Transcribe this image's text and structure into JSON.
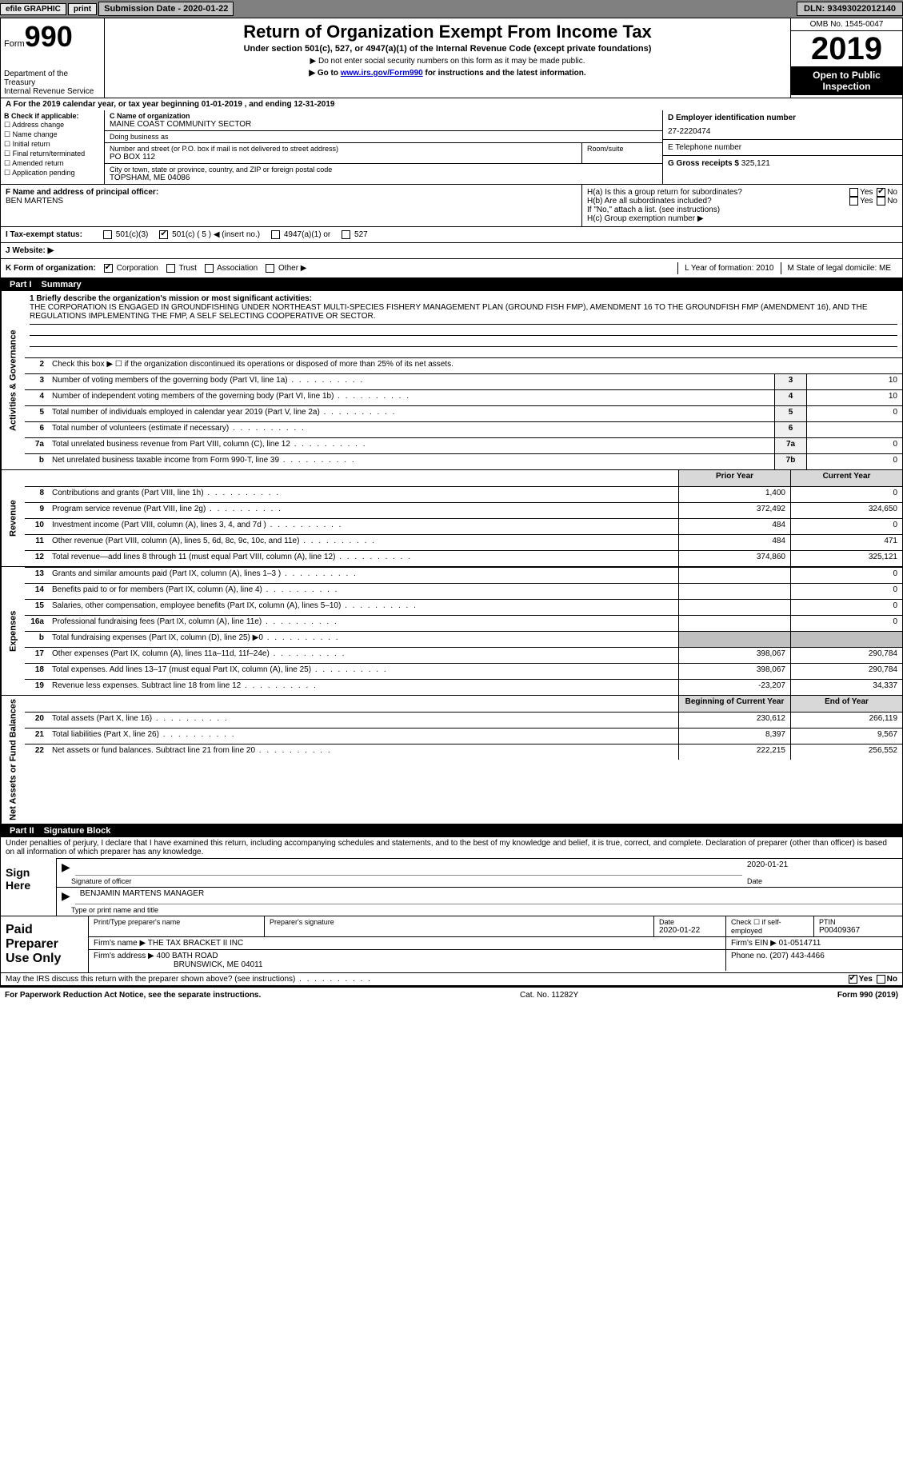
{
  "topbar": {
    "efile": "efile GRAPHIC",
    "print": "print",
    "submission": "Submission Date - 2020-01-22",
    "dln": "DLN: 93493022012140"
  },
  "header": {
    "form_label": "Form",
    "form_num": "990",
    "dept": "Department of the Treasury\nInternal Revenue Service",
    "title": "Return of Organization Exempt From Income Tax",
    "subtitle": "Under section 501(c), 527, or 4947(a)(1) of the Internal Revenue Code (except private foundations)",
    "note1": "▶ Do not enter social security numbers on this form as it may be made public.",
    "note2_pre": "▶ Go to ",
    "note2_link": "www.irs.gov/Form990",
    "note2_post": " for instructions and the latest information.",
    "omb": "OMB No. 1545-0047",
    "year": "2019",
    "open": "Open to Public Inspection"
  },
  "period": "For the 2019 calendar year, or tax year beginning 01-01-2019   , and ending 12-31-2019",
  "boxB": {
    "label": "B Check if applicable:",
    "items": [
      "☐ Address change",
      "☐ Name change",
      "☐ Initial return",
      "☐ Final return/terminated",
      "☐ Amended return",
      "☐ Application pending"
    ]
  },
  "boxC": {
    "name_label": "C Name of organization",
    "name": "MAINE COAST COMMUNITY SECTOR",
    "dba_label": "Doing business as",
    "dba": "",
    "addr_label": "Number and street (or P.O. box if mail is not delivered to street address)",
    "room_label": "Room/suite",
    "addr": "PO BOX 112",
    "city_label": "City or town, state or province, country, and ZIP or foreign postal code",
    "city": "TOPSHAM, ME  04086"
  },
  "boxD": {
    "label": "D Employer identification number",
    "val": "27-2220474"
  },
  "boxE": {
    "label": "E Telephone number",
    "val": ""
  },
  "boxG": {
    "label": "G Gross receipts $",
    "val": "325,121"
  },
  "boxF": {
    "label": "F  Name and address of principal officer:",
    "val": "BEN MARTENS"
  },
  "boxH": {
    "a_label": "H(a)  Is this a group return for subordinates?",
    "a_yes": "Yes",
    "a_no": "No",
    "b_label": "H(b)  Are all subordinates included?",
    "b_note": "If \"No,\" attach a list. (see instructions)",
    "c_label": "H(c)  Group exemption number ▶"
  },
  "taxstatus": {
    "label": "I   Tax-exempt status:",
    "opts": [
      "501(c)(3)",
      "501(c) ( 5 ) ◀ (insert no.)",
      "4947(a)(1) or",
      "527"
    ]
  },
  "website": {
    "label": "J   Website: ▶",
    "val": ""
  },
  "korg": {
    "label": "K Form of organization:",
    "opts": [
      "Corporation",
      "Trust",
      "Association",
      "Other ▶"
    ],
    "L": "L Year of formation: 2010",
    "M": "M State of legal domicile: ME"
  },
  "part1": {
    "num": "Part I",
    "title": "Summary"
  },
  "mission": {
    "label": "1    Briefly describe the organization's mission or most significant activities:",
    "text": "THE CORPORATION IS ENGAGED IN GROUNDFISHING UNDER NORTHEAST MULTI-SPECIES FISHERY MANAGEMENT PLAN (GROUND FISH FMP), AMENDMENT 16 TO THE GROUNDFISH FMP (AMENDMENT 16), AND THE REGULATIONS IMPLEMENTING THE FMP, A SELF SELECTING COOPERATIVE OR SECTOR."
  },
  "lines_gov": [
    {
      "n": "2",
      "d": "Check this box ▶ ☐  if the organization discontinued its operations or disposed of more than 25% of its net assets.",
      "box": "",
      "val": ""
    },
    {
      "n": "3",
      "d": "Number of voting members of the governing body (Part VI, line 1a)",
      "box": "3",
      "val": "10"
    },
    {
      "n": "4",
      "d": "Number of independent voting members of the governing body (Part VI, line 1b)",
      "box": "4",
      "val": "10"
    },
    {
      "n": "5",
      "d": "Total number of individuals employed in calendar year 2019 (Part V, line 2a)",
      "box": "5",
      "val": "0"
    },
    {
      "n": "6",
      "d": "Total number of volunteers (estimate if necessary)",
      "box": "6",
      "val": ""
    },
    {
      "n": "7a",
      "d": "Total unrelated business revenue from Part VIII, column (C), line 12",
      "box": "7a",
      "val": "0"
    },
    {
      "n": "b",
      "d": "Net unrelated business taxable income from Form 990-T, line 39",
      "box": "7b",
      "val": "0"
    }
  ],
  "side_labels": {
    "gov": "Activities & Governance",
    "rev": "Revenue",
    "exp": "Expenses",
    "net": "Net Assets or Fund Balances"
  },
  "col_hdrs": {
    "prior": "Prior Year",
    "curr": "Current Year",
    "beg": "Beginning of Current Year",
    "end": "End of Year"
  },
  "lines_rev": [
    {
      "n": "8",
      "d": "Contributions and grants (Part VIII, line 1h)",
      "p": "1,400",
      "c": "0"
    },
    {
      "n": "9",
      "d": "Program service revenue (Part VIII, line 2g)",
      "p": "372,492",
      "c": "324,650"
    },
    {
      "n": "10",
      "d": "Investment income (Part VIII, column (A), lines 3, 4, and 7d )",
      "p": "484",
      "c": "0"
    },
    {
      "n": "11",
      "d": "Other revenue (Part VIII, column (A), lines 5, 6d, 8c, 9c, 10c, and 11e)",
      "p": "484",
      "c": "471"
    },
    {
      "n": "12",
      "d": "Total revenue—add lines 8 through 11 (must equal Part VIII, column (A), line 12)",
      "p": "374,860",
      "c": "325,121"
    }
  ],
  "lines_exp": [
    {
      "n": "13",
      "d": "Grants and similar amounts paid (Part IX, column (A), lines 1–3 )",
      "p": "",
      "c": "0"
    },
    {
      "n": "14",
      "d": "Benefits paid to or for members (Part IX, column (A), line 4)",
      "p": "",
      "c": "0"
    },
    {
      "n": "15",
      "d": "Salaries, other compensation, employee benefits (Part IX, column (A), lines 5–10)",
      "p": "",
      "c": "0"
    },
    {
      "n": "16a",
      "d": "Professional fundraising fees (Part IX, column (A), line 11e)",
      "p": "",
      "c": "0"
    },
    {
      "n": "b",
      "d": "Total fundraising expenses (Part IX, column (D), line 25) ▶0",
      "p": "GREY",
      "c": "GREY"
    },
    {
      "n": "17",
      "d": "Other expenses (Part IX, column (A), lines 11a–11d, 11f–24e)",
      "p": "398,067",
      "c": "290,784"
    },
    {
      "n": "18",
      "d": "Total expenses. Add lines 13–17 (must equal Part IX, column (A), line 25)",
      "p": "398,067",
      "c": "290,784"
    },
    {
      "n": "19",
      "d": "Revenue less expenses. Subtract line 18 from line 12",
      "p": "-23,207",
      "c": "34,337"
    }
  ],
  "lines_net": [
    {
      "n": "20",
      "d": "Total assets (Part X, line 16)",
      "p": "230,612",
      "c": "266,119"
    },
    {
      "n": "21",
      "d": "Total liabilities (Part X, line 26)",
      "p": "8,397",
      "c": "9,567"
    },
    {
      "n": "22",
      "d": "Net assets or fund balances. Subtract line 21 from line 20",
      "p": "222,215",
      "c": "256,552"
    }
  ],
  "part2": {
    "num": "Part II",
    "title": "Signature Block"
  },
  "sig": {
    "intro": "Under penalties of perjury, I declare that I have examined this return, including accompanying schedules and statements, and to the best of my knowledge and belief, it is true, correct, and complete. Declaration of preparer (other than officer) is based on all information of which preparer has any knowledge.",
    "sign_here": "Sign Here",
    "sig_officer": "Signature of officer",
    "date_label": "Date",
    "date": "2020-01-21",
    "name": "BENJAMIN MARTENS MANAGER",
    "name_label": "Type or print name and title"
  },
  "prep": {
    "title": "Paid Preparer Use Only",
    "print_label": "Print/Type preparer's name",
    "sig_label": "Preparer's signature",
    "date_label": "Date",
    "date": "2020-01-22",
    "check_label": "Check ☐ if self-employed",
    "ptin_label": "PTIN",
    "ptin": "P00409367",
    "firm_name_label": "Firm's name    ▶",
    "firm_name": "THE TAX BRACKET II INC",
    "firm_ein_label": "Firm's EIN ▶",
    "firm_ein": "01-0514711",
    "firm_addr_label": "Firm's address ▶",
    "firm_addr1": "400 BATH ROAD",
    "firm_addr2": "BRUNSWICK, ME  04011",
    "phone_label": "Phone no.",
    "phone": "(207) 443-4466"
  },
  "discuss": {
    "q": "May the IRS discuss this return with the preparer shown above? (see instructions)",
    "yes": "Yes",
    "no": "No"
  },
  "footer": {
    "left": "For Paperwork Reduction Act Notice, see the separate instructions.",
    "mid": "Cat. No. 11282Y",
    "right": "Form 990 (2019)"
  }
}
